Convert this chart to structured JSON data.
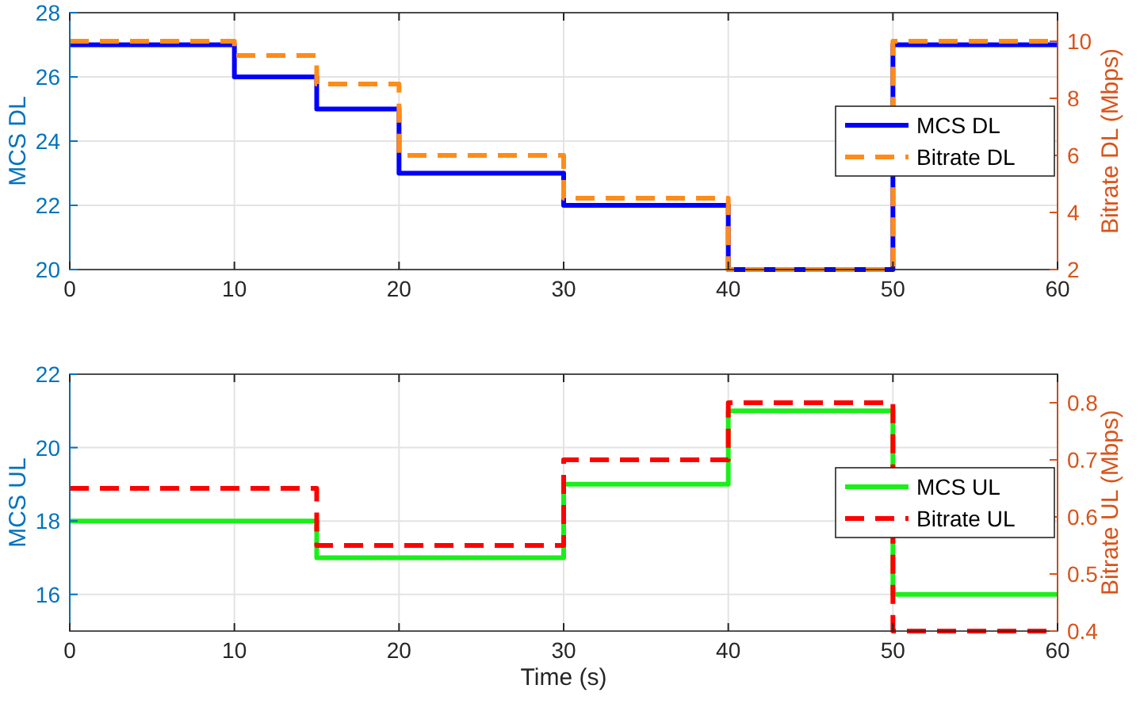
{
  "chart_data": [
    {
      "type": "step",
      "ylabel": "MCS DL",
      "y2label": "Bitrate DL (Mbps)",
      "xlim": [
        0,
        60
      ],
      "xticks": [
        0,
        10,
        20,
        30,
        40,
        50,
        60
      ],
      "ylim": [
        20,
        28
      ],
      "yticks": [
        20,
        22,
        24,
        26,
        28
      ],
      "y2lim": [
        2,
        11
      ],
      "y2ticks": [
        2,
        4,
        6,
        8,
        10
      ],
      "grid": true,
      "legend": "right",
      "x": [
        0,
        10,
        15,
        20,
        30,
        40,
        50,
        60
      ],
      "series": [
        {
          "name": "MCS DL",
          "color": "#0000ff",
          "line_style": "solid",
          "values": [
            27,
            26,
            25,
            23,
            22,
            20,
            27,
            27
          ]
        },
        {
          "name": "Bitrate DL",
          "color": "#ff8c1a",
          "line_style": "dashed",
          "axis": "y2",
          "values": [
            10,
            9.5,
            8.5,
            6,
            4.5,
            2,
            10,
            10
          ]
        }
      ]
    },
    {
      "type": "step",
      "xlabel": "Time (s)",
      "ylabel": "MCS UL",
      "y2label": "Bitrate UL (Mbps)",
      "xlim": [
        0,
        60
      ],
      "xticks": [
        0,
        10,
        20,
        30,
        40,
        50,
        60
      ],
      "ylim": [
        15,
        22
      ],
      "yticks": [
        16,
        18,
        20,
        22
      ],
      "y2lim": [
        0.4,
        0.85
      ],
      "y2ticks": [
        0.4,
        0.5,
        0.6,
        0.7,
        0.8
      ],
      "grid": true,
      "legend": "right",
      "x": [
        0,
        15,
        30,
        40,
        50,
        60
      ],
      "series": [
        {
          "name": "MCS UL",
          "color": "#1aef1a",
          "line_style": "solid",
          "values": [
            18,
            17,
            19,
            21,
            16,
            16
          ]
        },
        {
          "name": "Bitrate UL",
          "color": "#ff0000",
          "line_style": "dashed",
          "axis": "y2",
          "values": [
            0.65,
            0.55,
            0.7,
            0.8,
            0.4,
            0.4
          ]
        }
      ]
    }
  ]
}
